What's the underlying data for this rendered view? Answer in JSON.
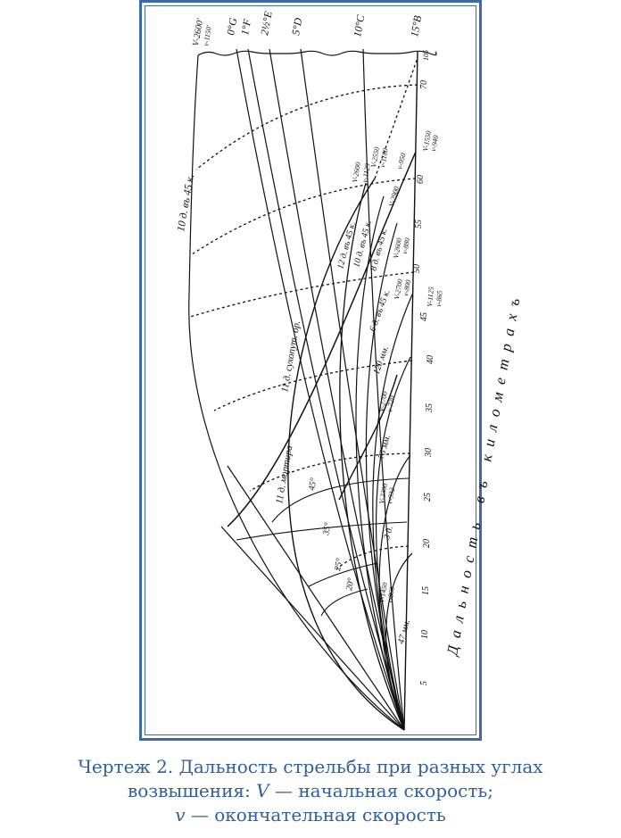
{
  "figure": {
    "top_labels": {
      "envelope_v": "V-2600'",
      "envelope_v_final": "v-1150'",
      "angles": [
        "0°G",
        "1°F",
        "2½°E",
        "5°D",
        "10°C",
        "15°B"
      ]
    },
    "axis_ticks": [
      "5",
      "10",
      "15",
      "20",
      "25",
      "30",
      "35",
      "40",
      "45",
      "50",
      "55",
      "60",
      "70",
      "105"
    ],
    "axis_title": "Дальность въ километрахъ",
    "elevation_labels": [
      "20°",
      "25°",
      "35°",
      "45°"
    ],
    "curve_labels": {
      "gun_10": "10 д. въ 45 к.",
      "gun_12": "12 д. въ 45 к.",
      "gun_10b": "10 д. въ 45 к.",
      "gun_8": "8 д. въ 45 к.",
      "gun_6": "6 д. въ 45 к.",
      "howitzer_sukhop": "11 д. сухопут. ор.",
      "mortar": "11 д. мортира",
      "gun_120": "120 мм.",
      "gun_75": "75 мм.",
      "gun_3": "3 д.",
      "gun_47": "47 мм."
    },
    "velocity_labels": [
      {
        "V": "V-2600",
        "v": "v-1129"
      },
      {
        "V": "V-2550",
        "v": "v-1180"
      },
      {
        "V": "V-2900",
        "v": "v-950"
      },
      {
        "V": "V-1550",
        "v": "v-940"
      },
      {
        "V": "V-2600",
        "v": "v-880"
      },
      {
        "V": "V-2700",
        "v": "v-800"
      },
      {
        "V": "V-1125",
        "v": "v-865"
      },
      {
        "V": "V-2700",
        "v": "v-720"
      },
      {
        "V": "V-2300",
        "v": "v-932"
      },
      {
        "V": "V-1450",
        "v": "v-860"
      }
    ]
  },
  "caption": {
    "line1": "Чертеж 2. Дальность стрельбы при разных углах",
    "line2_a": "возвышения: ",
    "line2_V": "V",
    "line2_b": " — начальная скорость;",
    "line3_v": "v",
    "line3_b": " — окончательная скорость"
  }
}
